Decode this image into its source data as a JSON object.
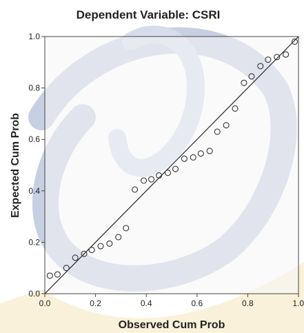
{
  "chart_data": {
    "type": "scatter",
    "title": "Dependent Variable: CSRI",
    "xlabel": "Observed Cum Prob",
    "ylabel": "Expected Cum Prob",
    "xlim": [
      0.0,
      1.0
    ],
    "ylim": [
      0.0,
      1.0
    ],
    "x_ticks": [
      "0.0",
      "0.2",
      "0.4",
      "0.6",
      "0.8",
      "1.0"
    ],
    "y_ticks": [
      "0.0",
      "0.2",
      "0.4",
      "0.6",
      "0.8",
      "1.0"
    ],
    "grid": false,
    "reference_line": {
      "from": [
        0,
        0
      ],
      "to": [
        1,
        1
      ]
    },
    "points": [
      {
        "x": 0.02,
        "y": 0.07
      },
      {
        "x": 0.05,
        "y": 0.075
      },
      {
        "x": 0.085,
        "y": 0.1
      },
      {
        "x": 0.12,
        "y": 0.14
      },
      {
        "x": 0.155,
        "y": 0.155
      },
      {
        "x": 0.185,
        "y": 0.17
      },
      {
        "x": 0.22,
        "y": 0.185
      },
      {
        "x": 0.255,
        "y": 0.195
      },
      {
        "x": 0.29,
        "y": 0.22
      },
      {
        "x": 0.32,
        "y": 0.255
      },
      {
        "x": 0.355,
        "y": 0.405
      },
      {
        "x": 0.39,
        "y": 0.44
      },
      {
        "x": 0.42,
        "y": 0.445
      },
      {
        "x": 0.45,
        "y": 0.46
      },
      {
        "x": 0.485,
        "y": 0.47
      },
      {
        "x": 0.515,
        "y": 0.485
      },
      {
        "x": 0.55,
        "y": 0.525
      },
      {
        "x": 0.585,
        "y": 0.53
      },
      {
        "x": 0.615,
        "y": 0.545
      },
      {
        "x": 0.65,
        "y": 0.555
      },
      {
        "x": 0.68,
        "y": 0.63
      },
      {
        "x": 0.715,
        "y": 0.655
      },
      {
        "x": 0.75,
        "y": 0.72
      },
      {
        "x": 0.785,
        "y": 0.82
      },
      {
        "x": 0.815,
        "y": 0.845
      },
      {
        "x": 0.85,
        "y": 0.885
      },
      {
        "x": 0.88,
        "y": 0.91
      },
      {
        "x": 0.915,
        "y": 0.92
      },
      {
        "x": 0.95,
        "y": 0.93
      },
      {
        "x": 0.985,
        "y": 0.98
      }
    ],
    "marker": "open-circle",
    "colors": {
      "marker": "#333333",
      "line": "#222222",
      "frame": "#444444",
      "plot_background": "#f5f5f5",
      "watermark_blue": "#8f9fc7",
      "watermark_gold": "#f6e7bd"
    }
  }
}
